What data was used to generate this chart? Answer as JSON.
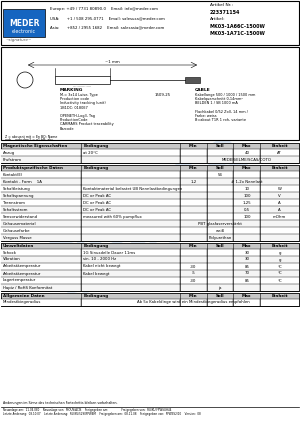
{
  "title": "MK03-1A71C-1500W_DE",
  "article_no": "Artikel Nr.:\n223371154",
  "artikel": "Artikel:\nMK03-1A66C-1500W\nMK03-1A71C-1500W",
  "company": "MEDER\nelectronic",
  "contact": "Europe: +49 / 7731 80890-0    Email: info@meder.com\nUSA:     +1 / 508 295-0771    Email: salesusa@meder.com\nAsia:      +852 / 2955 1682    Email: salesasia@meder.com",
  "mag_table_header": [
    "Magnetische Eigenschaften",
    "Bedingung",
    "Min",
    "Soll",
    "Max",
    "Einheit"
  ],
  "mag_rows": [
    [
      "Anzug",
      "at 20°C",
      "",
      "",
      "40",
      "AT"
    ],
    [
      "Prufstrom",
      "",
      "",
      "",
      "MEDER/ELME/SCAS/COTO",
      ""
    ]
  ],
  "prod_table_header": [
    "Produktspezifische Daten",
    "Bedingung",
    "Min",
    "Soll",
    "Max",
    "Einheit"
  ],
  "prod_rows": [
    [
      "Kontakt(E)",
      "",
      "",
      "54",
      "",
      ""
    ],
    [
      "Kontakt - Form    1A",
      "",
      "1,2",
      "",
      "# 1,2x Nennlast",
      ""
    ],
    [
      "Schaltleistung",
      "Kontaktmaterial belastet UB Nennlastbedingungen",
      "",
      "",
      "10",
      "W"
    ],
    [
      "Schaltspannung",
      "DC or Peak AC",
      "",
      "",
      "100",
      "V"
    ],
    [
      "Trennstrom",
      "DC or Peak AC",
      "",
      "",
      "1,25",
      "A"
    ],
    [
      "Schaltsstrom",
      "DC or Peak AC",
      "",
      "",
      "0,5",
      "A"
    ],
    [
      "Sensorwiderstand",
      "measured with 60% pumpflux",
      "",
      "",
      "100",
      "mOhm"
    ],
    [
      "Gehausematerial",
      "",
      "",
      "PBT glasfaserverstärkt",
      "",
      ""
    ],
    [
      "Gehausefarbe",
      "",
      "",
      "weiß",
      "",
      ""
    ],
    [
      "Verguss Masse",
      "",
      "",
      "Polyurethan",
      "",
      ""
    ]
  ],
  "env_table_header": [
    "Umweltdaten",
    "Bedingung",
    "Min",
    "Soll",
    "Max",
    "Einheit"
  ],
  "env_rows": [
    [
      "Schock",
      "1G Sinusdelle Dauer 11ms",
      "",
      "",
      "30",
      "g"
    ],
    [
      "Vibration",
      "sin. 10 - 2000 Hz",
      "",
      "",
      "30",
      "g"
    ],
    [
      "Arbeitstäemperatur",
      "Kabel nicht bewegt",
      "-30",
      "",
      "85",
      "°C"
    ],
    [
      "Arbeitstäemperatur",
      "Kabel bewegt",
      "-5",
      "",
      "70",
      "°C"
    ],
    [
      "Lagertemperatur",
      "",
      "-30",
      "",
      "85",
      "°C"
    ],
    [
      "Hapiz / RoHS Konformitat",
      "",
      "",
      "ja",
      "",
      ""
    ]
  ],
  "gen_table_header": [
    "Allgemeine Daten",
    "Bedingung",
    "Min",
    "Soll",
    "Max",
    "Einheit"
  ],
  "gen_rows": [
    [
      "Mindestbiegeradius",
      "",
      "Ab 5x Kabeldinge wird ein Mindestbiegeradius empfohlen",
      "",
      "",
      ""
    ]
  ],
  "footer_left": "Anderungen im Sinne des technischen Fortschritts bleiben vorbehalten.",
  "footer_rows": [
    [
      "Neuanlage am:",
      "11.04.080",
      "Neuanlage von:",
      "MOUS/ACIS",
      "Freigegeben am:",
      "",
      "Freigegeben von:",
      "RU/KU FPWSUH44"
    ],
    [
      "Letzte Anderung:",
      "08.10.07",
      "Letzte Anderung:",
      "RU/KU/5290FPWEM",
      "Freigegeben am:",
      "08.11.08",
      "Freigegeben von:",
      "FPWES2/10",
      "Version:",
      "08"
    ]
  ],
  "bg_white": "#ffffff",
  "bg_blue": "#1565C0",
  "header_bg": "#d0d0d0",
  "table_line": "#000000",
  "text_color": "#000000"
}
